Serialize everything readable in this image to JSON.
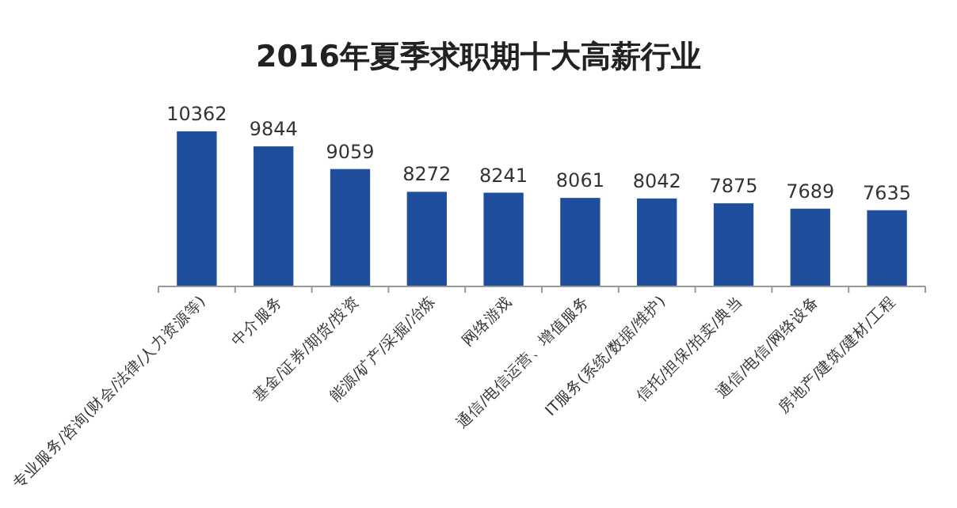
{
  "chart_data": {
    "type": "bar",
    "title": "2016年夏季求职期十大高薪行业",
    "categories": [
      "专业服务/咨询(财会/法律/人力资源等)",
      "中介服务",
      "基金/证券/期货/投资",
      "能源/矿产/采掘/冶炼",
      "网络游戏",
      "通信/电信运营、增值服务",
      "IT服务(系统/数据/维护)",
      "信托/担保/拍卖/典当",
      "通信/电信/网络设备",
      "房地产/建筑/建材/工程"
    ],
    "values": [
      10362,
      9844,
      9059,
      8272,
      8241,
      8061,
      8042,
      7875,
      7689,
      7635
    ],
    "color": "#1f4e9c",
    "ylim": [
      5000,
      10362
    ],
    "tick_labels": "x",
    "data_labels": true
  }
}
